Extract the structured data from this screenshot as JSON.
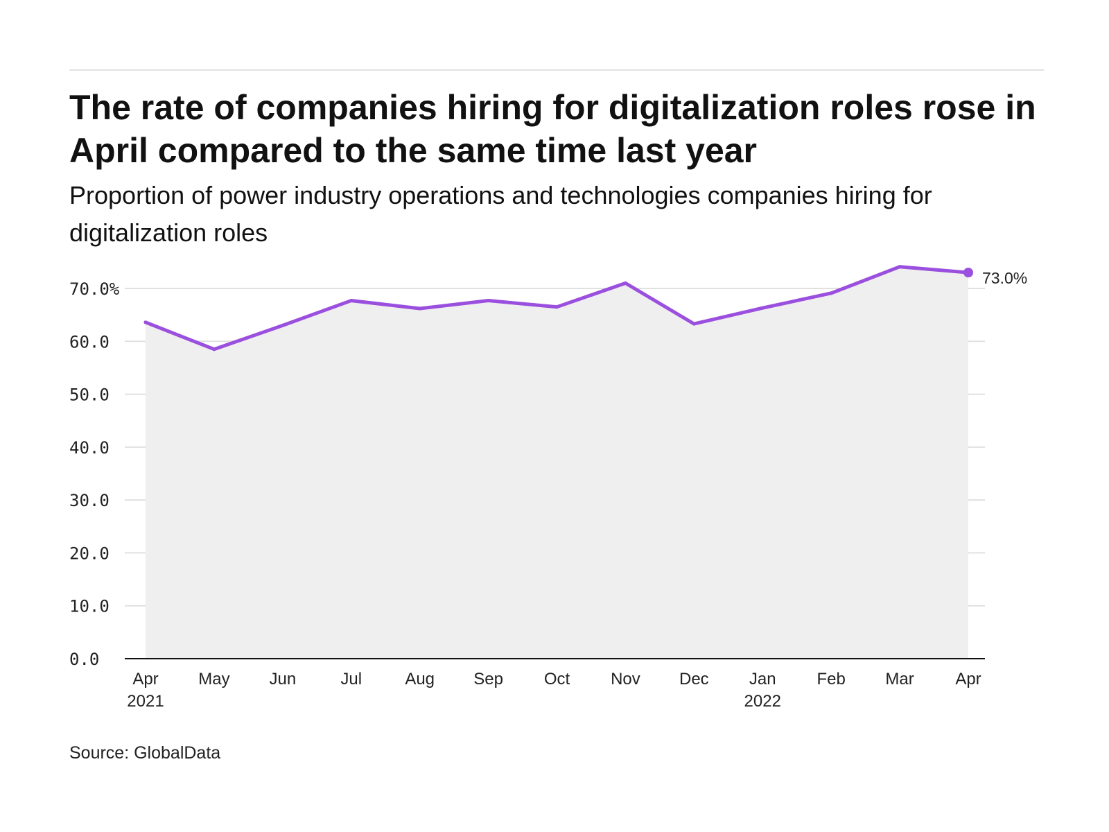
{
  "header": {
    "title": "The rate of companies hiring for digitalization roles rose in April compared to the same time last year",
    "subtitle": "Proportion of power industry operations and technologies companies hiring for digitalization roles"
  },
  "footer": {
    "source": "Source: GlobalData"
  },
  "colors": {
    "line": "#9b4fde",
    "area": "#efefef",
    "grid": "#e0e0e0",
    "axis": "#111111"
  },
  "chart_data": {
    "type": "area",
    "title": "The rate of companies hiring for digitalization roles rose in April compared to the same time last year",
    "subtitle": "Proportion of power industry operations and technologies companies hiring for digitalization roles",
    "xlabel": "",
    "ylabel": "",
    "categories": [
      "Apr",
      "May",
      "Jun",
      "Jul",
      "Aug",
      "Sep",
      "Oct",
      "Nov",
      "Dec",
      "Jan",
      "Feb",
      "Mar",
      "Apr"
    ],
    "year_labels": [
      "2021",
      "",
      "",
      "",
      "",
      "",
      "",
      "",
      "",
      "2022",
      "",
      "",
      ""
    ],
    "series": [
      {
        "name": "Companies hiring for digitalization roles",
        "values": [
          63.6,
          58.5,
          63.0,
          67.7,
          66.2,
          67.7,
          66.5,
          71.0,
          63.3,
          66.3,
          69.1,
          74.1,
          73.0
        ]
      }
    ],
    "ylim": [
      0,
      70
    ],
    "yticks": [
      0,
      10,
      20,
      30,
      40,
      50,
      60,
      70
    ],
    "ytick_labels": [
      "0.0",
      "10.0",
      "20.0",
      "30.0",
      "40.0",
      "50.0",
      "60.0",
      "70.0%"
    ],
    "grid": true,
    "end_label": "73.0%"
  }
}
